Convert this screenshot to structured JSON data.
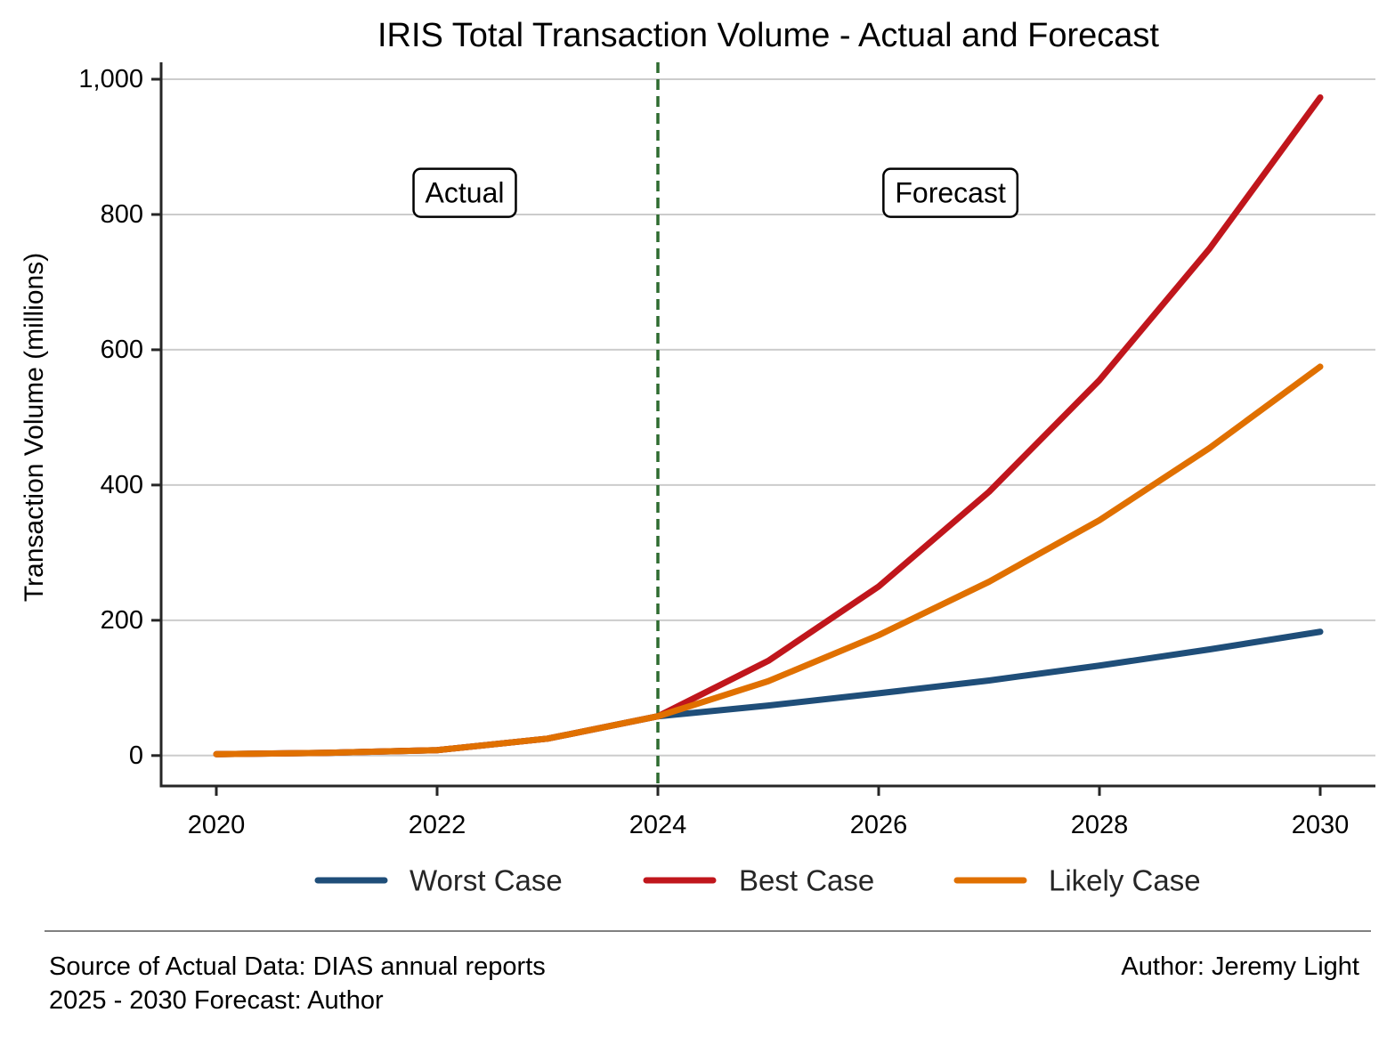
{
  "chart_data": {
    "type": "line",
    "title": "IRIS Total Transaction Volume - Actual and Forecast",
    "xlabel": "",
    "ylabel": "Transaction Volume (millions)",
    "x": [
      2020,
      2021,
      2022,
      2023,
      2024,
      2025,
      2026,
      2027,
      2028,
      2029,
      2030
    ],
    "xlim": [
      2019.5,
      2030.5
    ],
    "ylim": [
      -45,
      1025
    ],
    "x_ticks": [
      2020,
      2022,
      2024,
      2026,
      2028,
      2030
    ],
    "x_tick_labels": [
      "2020",
      "2022",
      "2024",
      "2026",
      "2028",
      "2030"
    ],
    "y_ticks": [
      0,
      200,
      400,
      600,
      800,
      1000
    ],
    "y_tick_labels": [
      "0",
      "200",
      "400",
      "600",
      "800",
      "1,000"
    ],
    "grid": "horizontal",
    "series": [
      {
        "name": "Worst Case",
        "color": "#1f4e79",
        "values": [
          2,
          4,
          8,
          25,
          58,
          74,
          92,
          111,
          133,
          157,
          183
        ]
      },
      {
        "name": "Best Case",
        "color": "#c0161c",
        "values": [
          2,
          4,
          8,
          25,
          58,
          140,
          250,
          390,
          555,
          750,
          973
        ]
      },
      {
        "name": "Likely Case",
        "color": "#e07000",
        "values": [
          2,
          4,
          8,
          25,
          58,
          110,
          178,
          257,
          348,
          455,
          575
        ]
      }
    ],
    "divider": {
      "x": 2024,
      "color": "#2e6b30",
      "style": "dashed"
    },
    "annotations": [
      {
        "text": "Actual",
        "x": 2022.25,
        "y": 832
      },
      {
        "text": "Forecast",
        "x": 2026.65,
        "y": 832
      }
    ],
    "legend": {
      "placement": "bottom-center"
    }
  },
  "footer": {
    "source_line": "Source of Actual Data: DIAS annual reports",
    "forecast_line": "2025 - 2030 Forecast: Author",
    "author": "Author: Jeremy Light"
  }
}
